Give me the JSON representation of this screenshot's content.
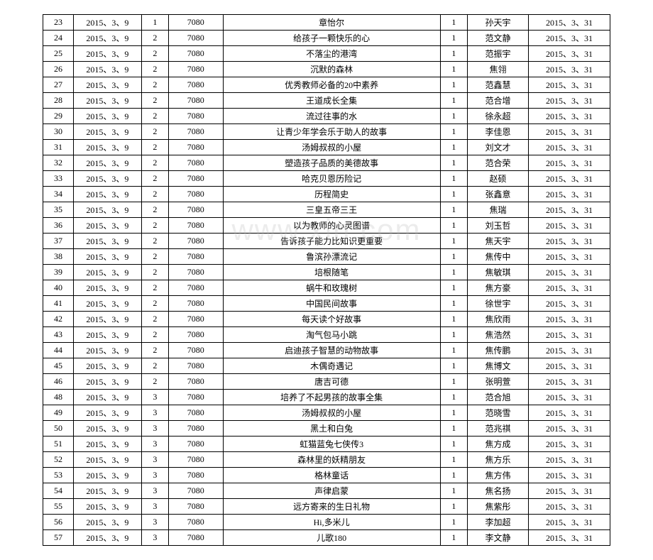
{
  "watermark": "www.xin.com",
  "rows": [
    [
      "23",
      "2015、3、9",
      "1",
      "7080",
      "章怡尔",
      "1",
      "孙天宇",
      "2015、3、31"
    ],
    [
      "24",
      "2015、3、9",
      "2",
      "7080",
      "给孩子一颗快乐的心",
      "1",
      "范文静",
      "2015、3、31"
    ],
    [
      "25",
      "2015、3、9",
      "2",
      "7080",
      "不落尘的港湾",
      "1",
      "范振宇",
      "2015、3、31"
    ],
    [
      "26",
      "2015、3、9",
      "2",
      "7080",
      "沉默的森林",
      "1",
      "焦翎",
      "2015、3、31"
    ],
    [
      "27",
      "2015、3、9",
      "2",
      "7080",
      "优秀教师必备的20中素养",
      "1",
      "范鑫慧",
      "2015、3、31"
    ],
    [
      "28",
      "2015、3、9",
      "2",
      "7080",
      "王道成长全集",
      "1",
      "范合增",
      "2015、3、31"
    ],
    [
      "29",
      "2015、3、9",
      "2",
      "7080",
      "流过往事的水",
      "1",
      "徐永超",
      "2015、3、31"
    ],
    [
      "30",
      "2015、3、9",
      "2",
      "7080",
      "让青少年学会乐于助人的故事",
      "1",
      "李佳恩",
      "2015、3、31"
    ],
    [
      "31",
      "2015、3、9",
      "2",
      "7080",
      "汤姆叔叔的小屋",
      "1",
      "刘文才",
      "2015、3、31"
    ],
    [
      "32",
      "2015、3、9",
      "2",
      "7080",
      "塑造孩子品质的美德故事",
      "1",
      "范合荣",
      "2015、3、31"
    ],
    [
      "33",
      "2015、3、9",
      "2",
      "7080",
      "哈克贝恩历险记",
      "1",
      "赵硕",
      "2015、3、31"
    ],
    [
      "34",
      "2015、3、9",
      "2",
      "7080",
      "历程简史",
      "1",
      "张鑫意",
      "2015、3、31"
    ],
    [
      "35",
      "2015、3、9",
      "2",
      "7080",
      "三皇五帝三王",
      "1",
      "焦瑞",
      "2015、3、31"
    ],
    [
      "36",
      "2015、3、9",
      "2",
      "7080",
      "以为教师的心灵图谱",
      "1",
      "刘玉哲",
      "2015、3、31"
    ],
    [
      "37",
      "2015、3、9",
      "2",
      "7080",
      "告诉孩子能力比知识更重要",
      "1",
      "焦天宇",
      "2015、3、31"
    ],
    [
      "38",
      "2015、3、9",
      "2",
      "7080",
      "鲁滨孙漂流记",
      "1",
      "焦传中",
      "2015、3、31"
    ],
    [
      "39",
      "2015、3、9",
      "2",
      "7080",
      "培根随笔",
      "1",
      "焦敏琪",
      "2015、3、31"
    ],
    [
      "40",
      "2015、3、9",
      "2",
      "7080",
      "蜗牛和玫瑰树",
      "1",
      "焦方豪",
      "2015、3、31"
    ],
    [
      "41",
      "2015、3、9",
      "2",
      "7080",
      "中国民间故事",
      "1",
      "徐世宇",
      "2015、3、31"
    ],
    [
      "42",
      "2015、3、9",
      "2",
      "7080",
      "每天读个好故事",
      "1",
      "焦欣雨",
      "2015、3、31"
    ],
    [
      "43",
      "2015、3、9",
      "2",
      "7080",
      "淘气包马小跳",
      "1",
      "焦浩然",
      "2015、3、31"
    ],
    [
      "44",
      "2015、3、9",
      "2",
      "7080",
      "启迪孩子智慧的动物故事",
      "1",
      "焦传鹏",
      "2015、3、31"
    ],
    [
      "45",
      "2015、3、9",
      "2",
      "7080",
      "木偶奇遇记",
      "1",
      "焦博文",
      "2015、3、31"
    ],
    [
      "46",
      "2015、3、9",
      "2",
      "7080",
      "唐吉可德",
      "1",
      "张明萱",
      "2015、3、31"
    ],
    [
      "48",
      "2015、3、9",
      "3",
      "7080",
      "培养了不起男孩的故事全集",
      "1",
      "范合旭",
      "2015、3、31"
    ],
    [
      "49",
      "2015、3、9",
      "3",
      "7080",
      "汤姆叔叔的小屋",
      "1",
      "范晓雪",
      "2015、3、31"
    ],
    [
      "50",
      "2015、3、9",
      "3",
      "7080",
      "黑土和白兔",
      "1",
      "范兆祺",
      "2015、3、31"
    ],
    [
      "51",
      "2015、3、9",
      "3",
      "7080",
      "虹猫蓝兔七侠传3",
      "1",
      "焦方成",
      "2015、3、31"
    ],
    [
      "52",
      "2015、3、9",
      "3",
      "7080",
      "森林里的妖精朋友",
      "1",
      "焦方乐",
      "2015、3、31"
    ],
    [
      "53",
      "2015、3、9",
      "3",
      "7080",
      "格林童话",
      "1",
      "焦方伟",
      "2015、3、31"
    ],
    [
      "54",
      "2015、3、9",
      "3",
      "7080",
      "声律启蒙",
      "1",
      "焦名扬",
      "2015、3、31"
    ],
    [
      "55",
      "2015、3、9",
      "3",
      "7080",
      "远方寄来的生日礼物",
      "1",
      "焦紫彤",
      "2015、3、31"
    ],
    [
      "56",
      "2015、3、9",
      "3",
      "7080",
      "Hi,多米儿",
      "1",
      "李加超",
      "2015、3、31"
    ],
    [
      "57",
      "2015、3、9",
      "3",
      "7080",
      "儿歌180",
      "1",
      "李文静",
      "2015、3、31"
    ]
  ]
}
